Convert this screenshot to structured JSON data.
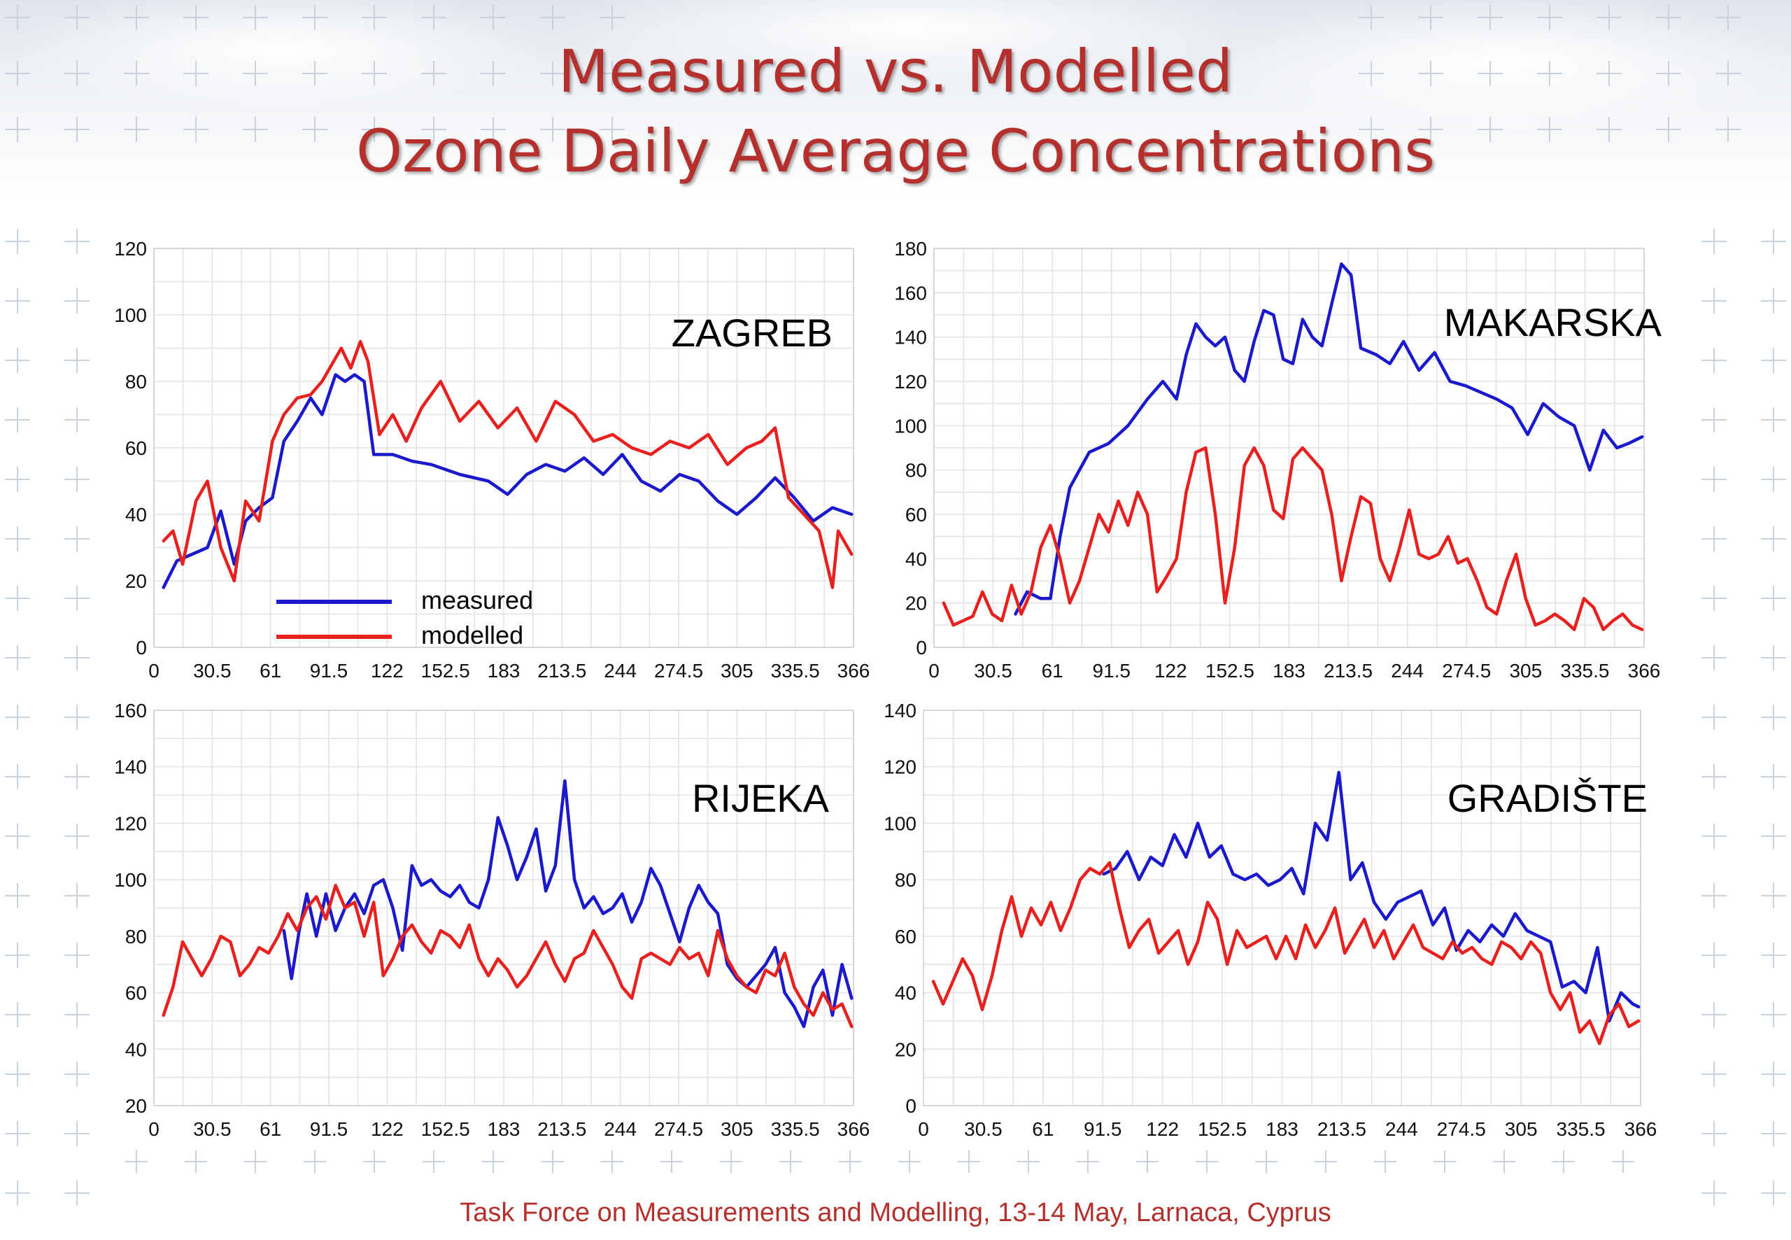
{
  "slide": {
    "title_line1": "Measured vs. Modelled",
    "title_line2": "Ozone Daily Average Concentrations",
    "footer": "Task Force on Measurements and Modelling, 13-14 May, Larnaca, Cyprus"
  },
  "colors": {
    "title": "#b5302c",
    "measured": "#1a1acc",
    "modelled": "#e8201e",
    "grid": "#e2e2e2",
    "decor_cross": "#c9d2dc"
  },
  "chart_data": [
    {
      "type": "line",
      "name": "ZAGREB",
      "x_ticks": [
        "0",
        "30.5",
        "61",
        "91.5",
        "122",
        "152.5",
        "183",
        "213.5",
        "244",
        "274.5",
        "305",
        "335.5",
        "366"
      ],
      "xlim": [
        0,
        366
      ],
      "ylim": [
        0,
        120
      ],
      "y_ticks": [
        "0",
        "20",
        "40",
        "60",
        "80",
        "100",
        "120"
      ],
      "grid": true,
      "legend": {
        "placement": "bottom-left",
        "entries": [
          "measured",
          "modelled"
        ]
      },
      "series": [
        {
          "name": "measured",
          "x": [
            5,
            12,
            20,
            28,
            35,
            42,
            48,
            55,
            62,
            68,
            75,
            82,
            88,
            95,
            100,
            105,
            110,
            115,
            125,
            135,
            145,
            160,
            175,
            185,
            195,
            205,
            215,
            225,
            235,
            245,
            255,
            265,
            275,
            285,
            295,
            305,
            315,
            325,
            335,
            345,
            355,
            365
          ],
          "values": [
            18,
            26,
            28,
            30,
            41,
            25,
            38,
            42,
            45,
            62,
            68,
            75,
            70,
            82,
            80,
            82,
            80,
            58,
            58,
            56,
            55,
            52,
            50,
            46,
            52,
            55,
            53,
            57,
            52,
            58,
            50,
            47,
            52,
            50,
            44,
            40,
            45,
            51,
            45,
            38,
            42,
            40
          ]
        },
        {
          "name": "modelled",
          "x": [
            5,
            10,
            15,
            22,
            28,
            35,
            42,
            48,
            55,
            62,
            68,
            75,
            82,
            88,
            93,
            98,
            103,
            108,
            112,
            118,
            125,
            132,
            140,
            150,
            160,
            170,
            180,
            190,
            200,
            210,
            220,
            230,
            240,
            250,
            260,
            270,
            280,
            290,
            300,
            310,
            318,
            325,
            332,
            340,
            348,
            355,
            358,
            365
          ],
          "values": [
            32,
            35,
            25,
            44,
            50,
            30,
            20,
            44,
            38,
            62,
            70,
            75,
            76,
            80,
            85,
            90,
            84,
            92,
            86,
            64,
            70,
            62,
            72,
            80,
            68,
            74,
            66,
            72,
            62,
            74,
            70,
            62,
            64,
            60,
            58,
            62,
            60,
            64,
            55,
            60,
            62,
            66,
            45,
            40,
            35,
            18,
            35,
            28
          ]
        }
      ]
    },
    {
      "type": "line",
      "name": "MAKARSKA",
      "x_ticks": [
        "0",
        "30.5",
        "61",
        "91.5",
        "122",
        "152.5",
        "183",
        "213.5",
        "244",
        "274.5",
        "305",
        "335.5",
        "366"
      ],
      "xlim": [
        0,
        366
      ],
      "ylim": [
        0,
        180
      ],
      "y_ticks": [
        "0",
        "20",
        "40",
        "60",
        "80",
        "100",
        "120",
        "140",
        "160",
        "180"
      ],
      "grid": true,
      "legend": null,
      "series": [
        {
          "name": "measured",
          "x": [
            42,
            48,
            55,
            60,
            65,
            70,
            80,
            90,
            100,
            110,
            118,
            125,
            130,
            135,
            140,
            145,
            150,
            155,
            160,
            165,
            170,
            175,
            180,
            185,
            190,
            195,
            200,
            205,
            210,
            215,
            220,
            228,
            235,
            242,
            250,
            258,
            266,
            274,
            282,
            290,
            298,
            306,
            314,
            322,
            330,
            338,
            345,
            352,
            358,
            365
          ],
          "values": [
            15,
            25,
            22,
            22,
            50,
            72,
            88,
            92,
            100,
            112,
            120,
            112,
            132,
            146,
            140,
            136,
            140,
            125,
            120,
            138,
            152,
            150,
            130,
            128,
            148,
            140,
            136,
            155,
            173,
            168,
            135,
            132,
            128,
            138,
            125,
            133,
            120,
            118,
            115,
            112,
            108,
            96,
            110,
            104,
            100,
            80,
            98,
            90,
            92,
            95
          ]
        },
        {
          "name": "modelled",
          "x": [
            5,
            10,
            15,
            20,
            25,
            30,
            35,
            40,
            45,
            50,
            55,
            60,
            65,
            70,
            75,
            80,
            85,
            90,
            95,
            100,
            105,
            110,
            115,
            120,
            125,
            130,
            135,
            140,
            145,
            150,
            155,
            160,
            165,
            170,
            175,
            180,
            185,
            190,
            195,
            200,
            205,
            210,
            215,
            220,
            225,
            230,
            235,
            240,
            245,
            250,
            255,
            260,
            265,
            270,
            275,
            280,
            285,
            290,
            295,
            300,
            305,
            310,
            315,
            320,
            325,
            330,
            335,
            340,
            345,
            350,
            355,
            360,
            365
          ],
          "values": [
            20,
            10,
            12,
            14,
            25,
            15,
            12,
            28,
            15,
            25,
            45,
            55,
            40,
            20,
            30,
            45,
            60,
            52,
            66,
            55,
            70,
            60,
            25,
            32,
            40,
            70,
            88,
            90,
            60,
            20,
            45,
            82,
            90,
            82,
            62,
            58,
            85,
            90,
            85,
            80,
            60,
            30,
            50,
            68,
            65,
            40,
            30,
            45,
            62,
            42,
            40,
            42,
            50,
            38,
            40,
            30,
            18,
            15,
            30,
            42,
            22,
            10,
            12,
            15,
            12,
            8,
            22,
            18,
            8,
            12,
            15,
            10,
            8
          ]
        }
      ]
    },
    {
      "type": "line",
      "name": "RIJEKA",
      "x_ticks": [
        "0",
        "30.5",
        "61",
        "91.5",
        "122",
        "152.5",
        "183",
        "213.5",
        "244",
        "274.5",
        "305",
        "335.5",
        "366"
      ],
      "xlim": [
        0,
        366
      ],
      "ylim": [
        20,
        160
      ],
      "y_ticks": [
        "20",
        "40",
        "60",
        "80",
        "100",
        "120",
        "140",
        "160"
      ],
      "grid": true,
      "legend": null,
      "series": [
        {
          "name": "measured",
          "x": [
            68,
            72,
            76,
            80,
            85,
            90,
            95,
            100,
            105,
            110,
            115,
            120,
            125,
            130,
            135,
            140,
            145,
            150,
            155,
            160,
            165,
            170,
            175,
            180,
            185,
            190,
            195,
            200,
            205,
            210,
            215,
            220,
            225,
            230,
            235,
            240,
            245,
            250,
            255,
            260,
            265,
            270,
            275,
            280,
            285,
            290,
            295,
            300,
            305,
            310,
            315,
            320,
            325,
            330,
            335,
            340,
            345,
            350,
            355,
            360,
            365
          ],
          "values": [
            82,
            65,
            82,
            95,
            80,
            95,
            82,
            90,
            95,
            88,
            98,
            100,
            90,
            75,
            105,
            98,
            100,
            96,
            94,
            98,
            92,
            90,
            100,
            122,
            112,
            100,
            108,
            118,
            96,
            105,
            135,
            100,
            90,
            94,
            88,
            90,
            95,
            85,
            92,
            104,
            98,
            88,
            78,
            90,
            98,
            92,
            88,
            70,
            65,
            62,
            66,
            70,
            76,
            60,
            55,
            48,
            62,
            68,
            52,
            70,
            58
          ]
        },
        {
          "name": "modelled",
          "x": [
            5,
            10,
            15,
            20,
            25,
            30,
            35,
            40,
            45,
            50,
            55,
            60,
            65,
            70,
            75,
            80,
            85,
            90,
            95,
            100,
            105,
            110,
            115,
            120,
            125,
            130,
            135,
            140,
            145,
            150,
            155,
            160,
            165,
            170,
            175,
            180,
            185,
            190,
            195,
            200,
            205,
            210,
            215,
            220,
            225,
            230,
            235,
            240,
            245,
            250,
            255,
            260,
            265,
            270,
            275,
            280,
            285,
            290,
            295,
            300,
            305,
            310,
            315,
            320,
            325,
            330,
            335,
            340,
            345,
            350,
            355,
            360,
            365
          ],
          "values": [
            52,
            62,
            78,
            72,
            66,
            72,
            80,
            78,
            66,
            70,
            76,
            74,
            80,
            88,
            82,
            90,
            94,
            86,
            98,
            90,
            92,
            80,
            92,
            66,
            72,
            80,
            84,
            78,
            74,
            82,
            80,
            76,
            84,
            72,
            66,
            72,
            68,
            62,
            66,
            72,
            78,
            70,
            64,
            72,
            74,
            82,
            76,
            70,
            62,
            58,
            72,
            74,
            72,
            70,
            76,
            72,
            74,
            66,
            82,
            72,
            66,
            62,
            60,
            68,
            66,
            74,
            62,
            56,
            52,
            60,
            54,
            56,
            48
          ]
        }
      ]
    },
    {
      "type": "line",
      "name": "GRADIŠTE",
      "x_ticks": [
        "0",
        "30.5",
        "61",
        "91.5",
        "122",
        "152.5",
        "183",
        "213.5",
        "244",
        "274.5",
        "305",
        "335.5",
        "366"
      ],
      "xlim": [
        0,
        366
      ],
      "ylim": [
        0,
        140
      ],
      "y_ticks": [
        "0",
        "20",
        "40",
        "60",
        "80",
        "100",
        "120",
        "140"
      ],
      "grid": true,
      "legend": null,
      "series": [
        {
          "name": "measured",
          "x": [
            92,
            98,
            104,
            110,
            116,
            122,
            128,
            134,
            140,
            146,
            152,
            158,
            164,
            170,
            176,
            182,
            188,
            194,
            200,
            206,
            212,
            218,
            224,
            230,
            236,
            242,
            248,
            254,
            260,
            266,
            272,
            278,
            284,
            290,
            296,
            302,
            308,
            314,
            320,
            326,
            332,
            338,
            344,
            350,
            356,
            362,
            365
          ],
          "values": [
            82,
            84,
            90,
            80,
            88,
            85,
            96,
            88,
            100,
            88,
            92,
            82,
            80,
            82,
            78,
            80,
            84,
            75,
            100,
            94,
            118,
            80,
            86,
            72,
            66,
            72,
            74,
            76,
            64,
            70,
            55,
            62,
            58,
            64,
            60,
            68,
            62,
            60,
            58,
            42,
            44,
            40,
            56,
            30,
            40,
            36,
            35
          ]
        },
        {
          "name": "modelled",
          "x": [
            5,
            10,
            15,
            20,
            25,
            30,
            35,
            40,
            45,
            50,
            55,
            60,
            65,
            70,
            75,
            80,
            85,
            90,
            95,
            100,
            105,
            110,
            115,
            120,
            125,
            130,
            135,
            140,
            145,
            150,
            155,
            160,
            165,
            170,
            175,
            180,
            185,
            190,
            195,
            200,
            205,
            210,
            215,
            220,
            225,
            230,
            235,
            240,
            245,
            250,
            255,
            260,
            265,
            270,
            275,
            280,
            285,
            290,
            295,
            300,
            305,
            310,
            315,
            320,
            325,
            330,
            335,
            340,
            345,
            350,
            355,
            360,
            365
          ],
          "values": [
            44,
            36,
            44,
            52,
            46,
            34,
            46,
            62,
            74,
            60,
            70,
            64,
            72,
            62,
            70,
            80,
            84,
            82,
            86,
            70,
            56,
            62,
            66,
            54,
            58,
            62,
            50,
            58,
            72,
            66,
            50,
            62,
            56,
            58,
            60,
            52,
            60,
            52,
            64,
            56,
            62,
            70,
            54,
            60,
            66,
            56,
            62,
            52,
            58,
            64,
            56,
            54,
            52,
            58,
            54,
            56,
            52,
            50,
            58,
            56,
            52,
            58,
            54,
            40,
            34,
            40,
            26,
            30,
            22,
            32,
            36,
            28,
            30
          ]
        }
      ]
    }
  ]
}
